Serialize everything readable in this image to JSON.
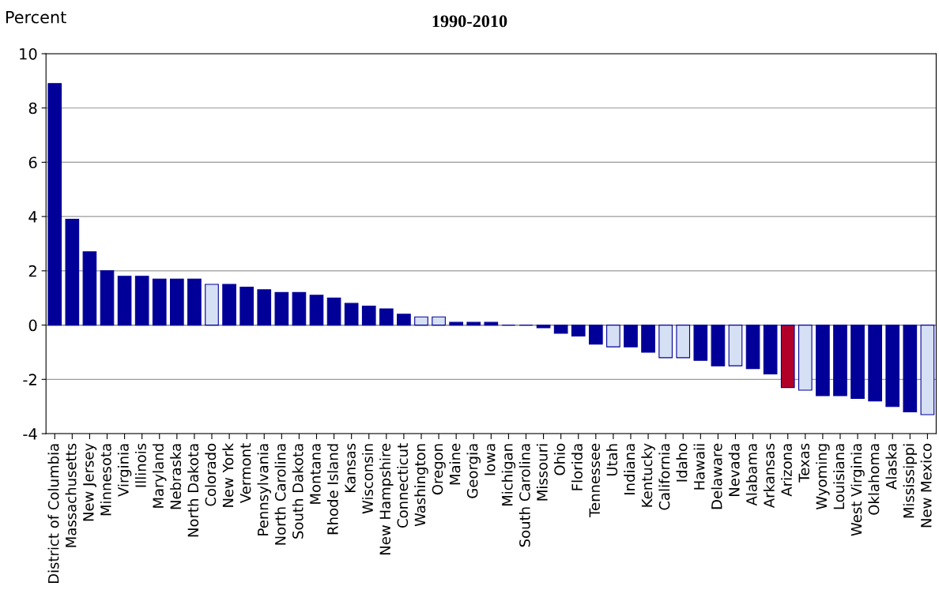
{
  "chart_data": {
    "type": "bar",
    "title": "1990-2010",
    "ylabel": "Percent",
    "categories": [
      "District of Columbia",
      "Massachusetts",
      "New Jersey",
      "Minnesota",
      "Virginia",
      "Illinois",
      "Maryland",
      "Nebraska",
      "North Dakota",
      "Colorado",
      "New York",
      "Vermont",
      "Pennsylvania",
      "North Carolina",
      "South Dakota",
      "Montana",
      "Rhode Island",
      "Kansas",
      "Wisconsin",
      "New Hampshire",
      "Connecticut",
      "Washington",
      "Oregon",
      "Maine",
      "Georgia",
      "Iowa",
      "Michigan",
      "South Carolina",
      "Missouri",
      "Ohio",
      "Florida",
      "Tennessee",
      "Utah",
      "Indiana",
      "Kentucky",
      "California",
      "Idaho",
      "Hawaii",
      "Delaware",
      "Nevada",
      "Alabama",
      "Arkansas",
      "Arizona",
      "Texas",
      "Wyoming",
      "Louisiana",
      "West Virginia",
      "Oklahoma",
      "Alaska",
      "Mississippi",
      "New Mexico"
    ],
    "values": [
      8.9,
      3.9,
      2.7,
      2.0,
      1.8,
      1.8,
      1.7,
      1.7,
      1.7,
      1.5,
      1.5,
      1.4,
      1.3,
      1.2,
      1.2,
      1.1,
      1.0,
      0.8,
      0.7,
      0.6,
      0.4,
      0.3,
      0.3,
      0.1,
      0.1,
      0.1,
      0,
      0,
      -0.1,
      -0.3,
      -0.4,
      -0.7,
      -0.8,
      -0.8,
      -1.0,
      -1.2,
      -1.2,
      -1.3,
      -1.5,
      -1.5,
      -1.6,
      -1.8,
      -2.3,
      -2.4,
      -2.6,
      -2.6,
      -2.7,
      -2.8,
      -3.0,
      -3.2,
      -3.3
    ],
    "colors": [
      "#000099",
      "#000099",
      "#000099",
      "#000099",
      "#000099",
      "#000099",
      "#000099",
      "#000099",
      "#000099",
      "#d6e0f5",
      "#000099",
      "#000099",
      "#000099",
      "#000099",
      "#000099",
      "#000099",
      "#000099",
      "#000099",
      "#000099",
      "#000099",
      "#000099",
      "#d6e0f5",
      "#d6e0f5",
      "#000099",
      "#000099",
      "#000099",
      "#000099",
      "#000099",
      "#000099",
      "#000099",
      "#000099",
      "#000099",
      "#d6e0f5",
      "#000099",
      "#000099",
      "#d6e0f5",
      "#d6e0f5",
      "#000099",
      "#000099",
      "#d6e0f5",
      "#000099",
      "#000099",
      "#b0002a",
      "#d6e0f5",
      "#000099",
      "#000099",
      "#000099",
      "#000099",
      "#000099",
      "#000099",
      "#d6e0f5"
    ],
    "ylim": [
      -4,
      10
    ],
    "yticks": [
      -4,
      -2,
      0,
      2,
      4,
      6,
      8,
      10
    ],
    "grid": "y",
    "legend": false
  }
}
